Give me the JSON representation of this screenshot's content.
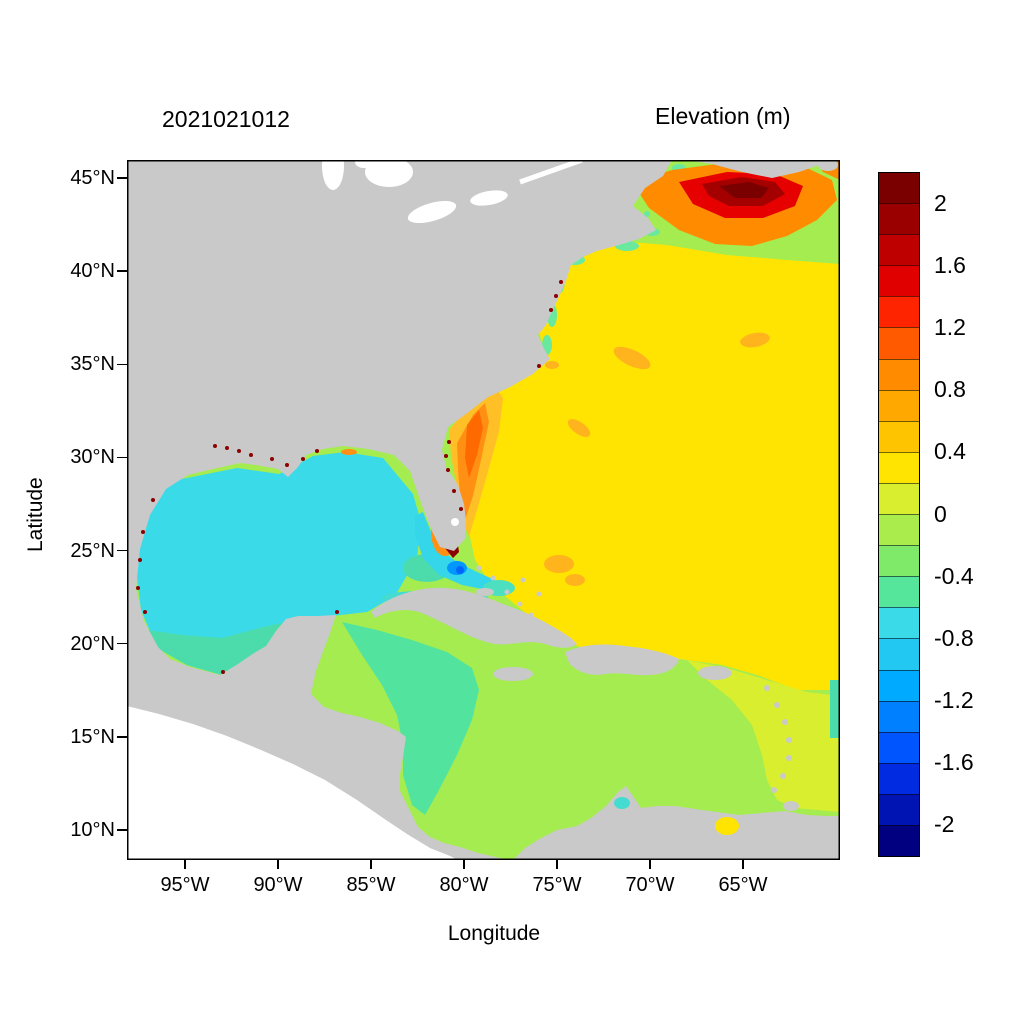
{
  "figure": {
    "timestamp_title": "2021021012",
    "elevation_title": "Elevation (m)",
    "xlabel": "Longitude",
    "ylabel": "Latitude"
  },
  "palette": {
    "land": "#C9C9C9",
    "outside_domain": "#FFFFFF",
    "lake": "#FFFFFF",
    "atlantic_yellow": "#FFE402",
    "yellow_green": "#D8EE2E",
    "caribbean_green": "#A4EC4F",
    "teal_green": "#52E49E",
    "gulf_cyan": "#3ADAE8",
    "teal_band": "#4CDCAC",
    "strait_cyan": "#36D6EA",
    "bahama_teal": "#4CE0C0",
    "coastal_green": "#6AE89E",
    "cyan_sliver": "#44DCD0",
    "orange_halo": "#FFC027",
    "orange": "#FF9014",
    "deep_orange": "#FF6A00",
    "atl_orange": "#FFB41E",
    "maine_orange": "#FF8C00",
    "red": "#E60000",
    "dark_red": "#A50000",
    "maroon": "#7A0000",
    "coast_maroon": "#8B0000",
    "blue_spot": "#0098FF",
    "deep_blue": "#0064FF"
  },
  "chart_data": {
    "type": "heatmap",
    "title": "Elevation (m)",
    "timestamp": "2021021012",
    "xlabel": "Longitude",
    "ylabel": "Latitude",
    "x_ticks": [
      "95°W",
      "90°W",
      "85°W",
      "80°W",
      "75°W",
      "70°W",
      "65°W"
    ],
    "y_ticks": [
      "45°N",
      "40°N",
      "35°N",
      "30°N",
      "25°N",
      "20°N",
      "15°N",
      "10°N"
    ],
    "lon_range_deg": [
      -98,
      -60
    ],
    "lat_range_deg": [
      8.4,
      45.5
    ],
    "grid": false,
    "legend_position": "right colorbar",
    "colorbar": {
      "units": "m",
      "min": -2.2,
      "max": 2.2,
      "step": 0.2,
      "tick_values": [
        2,
        1.6,
        1.2,
        0.8,
        0.4,
        0,
        -0.4,
        -0.8,
        -1.2,
        -1.6,
        -2
      ],
      "colors_top_to_bottom": [
        "#7A0000",
        "#9B0000",
        "#BE0000",
        "#E10000",
        "#FF2400",
        "#FF5A00",
        "#FF8C00",
        "#FFA800",
        "#FFC400",
        "#FFE402",
        "#D8EE2E",
        "#AAEC4C",
        "#7FE96A",
        "#55E69B",
        "#3ADAE8",
        "#22C8F2",
        "#00AAFF",
        "#0080FF",
        "#0055FF",
        "#002BE0",
        "#0014B4",
        "#000080"
      ]
    },
    "regions": [
      {
        "area": "Gulf of Maine / Scotian Shelf maximum",
        "approx_elevation_m": 2.1
      },
      {
        "area": "Ring around Gulf of Maine maximum",
        "approx_elevation_m": 1.3
      },
      {
        "area": "Open North Atlantic interior",
        "approx_elevation_m": 0.3
      },
      {
        "area": "US southeast shelf band (Georgia-Florida)",
        "approx_elevation_m": 0.9
      },
      {
        "area": "Southwest Florida coast hotspot",
        "approx_elevation_m": 2.0
      },
      {
        "area": "Northern Gulf coast fringe (Louisiana-Alabama)",
        "approx_elevation_m": 1.2
      },
      {
        "area": "Gulf of Mexico interior",
        "approx_elevation_m": -0.5
      },
      {
        "area": "Southern Gulf / Campeche rim",
        "approx_elevation_m": -0.3
      },
      {
        "area": "Florida Strait / NW Bahamas low",
        "approx_elevation_m": -0.9
      },
      {
        "area": "Western Caribbean (Honduras-Nicaragua)",
        "approx_elevation_m": -0.3
      },
      {
        "area": "Central and eastern Caribbean",
        "approx_elevation_m": -0.1
      },
      {
        "area": "Atlantic east of Lesser Antilles",
        "approx_elevation_m": 0.1
      },
      {
        "area": "Mid-Atlantic coastal sliver (Hatteras-Cape Cod)",
        "approx_elevation_m": -0.3
      },
      {
        "area": "Offshore eddy patches (Gulf Stream)",
        "approx_elevation_m": 0.7
      },
      {
        "area": "Venezuela coast spot",
        "approx_elevation_m": 0.3
      }
    ]
  }
}
